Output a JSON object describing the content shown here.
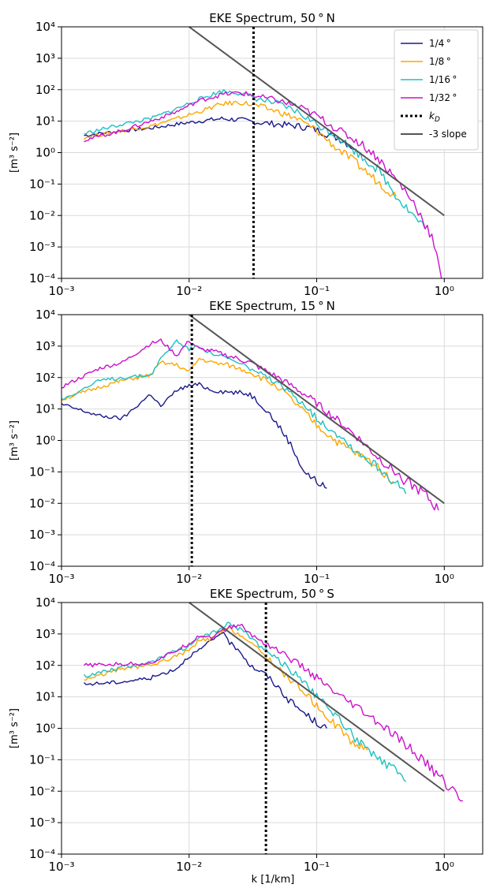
{
  "figure": {
    "xlabel": "k [1/km]"
  },
  "chart_data": [
    {
      "type": "line",
      "title": "EKE Spectrum, 50$^\\circ$N",
      "title_text": "EKE Spectrum, 50 ° N",
      "xlabel": "",
      "ylabel": "[m³ s⁻²]",
      "xscale": "log",
      "yscale": "log",
      "xlim": [
        0.001,
        2
      ],
      "ylim": [
        0.0001,
        10000
      ],
      "x_ticks": [
        "10⁻³",
        "10⁻²",
        "10⁻¹",
        "10⁰"
      ],
      "y_ticks": [
        "10⁻⁴",
        "10⁻³",
        "10⁻²",
        "10⁻¹",
        "10⁰",
        "10¹",
        "10²",
        "10³",
        "10⁴"
      ],
      "grid": true,
      "legend": {
        "placement": "top-right",
        "entries": [
          "1/4 °",
          "1/8 °",
          "1/16 °",
          "1/32 °",
          "k_D",
          "-3 slope"
        ]
      },
      "series": [
        {
          "name": "1/4°",
          "color": "#1a1a8c",
          "x": [
            0.0015,
            0.003,
            0.005,
            0.008,
            0.012,
            0.018,
            0.025,
            0.035,
            0.05,
            0.07,
            0.09,
            0.12,
            0.16,
            0.2
          ],
          "y": [
            3.5,
            5,
            6,
            8,
            10,
            12,
            11,
            9,
            8,
            7,
            6,
            4,
            2.5,
            1.3
          ]
        },
        {
          "name": "1/8°",
          "color": "#ffa500",
          "x": [
            0.0015,
            0.003,
            0.005,
            0.008,
            0.012,
            0.018,
            0.025,
            0.035,
            0.05,
            0.07,
            0.1,
            0.14,
            0.2,
            0.3,
            0.42
          ],
          "y": [
            3,
            5,
            7,
            12,
            20,
            35,
            40,
            30,
            20,
            12,
            5,
            1.5,
            0.5,
            0.12,
            0.04
          ]
        },
        {
          "name": "1/16°",
          "color": "#20c0c0",
          "x": [
            0.0015,
            0.003,
            0.005,
            0.008,
            0.012,
            0.018,
            0.025,
            0.035,
            0.05,
            0.07,
            0.1,
            0.15,
            0.22,
            0.3,
            0.45,
            0.7
          ],
          "y": [
            4,
            8,
            12,
            25,
            50,
            90,
            80,
            50,
            35,
            20,
            8,
            3,
            0.8,
            0.3,
            0.03,
            0.004
          ]
        },
        {
          "name": "1/32°",
          "color": "#cc11cc",
          "x": [
            0.0015,
            0.003,
            0.005,
            0.008,
            0.012,
            0.018,
            0.025,
            0.035,
            0.05,
            0.07,
            0.1,
            0.15,
            0.22,
            0.3,
            0.45,
            0.6,
            0.8,
            0.95
          ],
          "y": [
            2.5,
            5,
            10,
            20,
            45,
            70,
            80,
            60,
            45,
            30,
            15,
            5,
            2,
            0.7,
            0.1,
            0.02,
            0.002,
            0.0001
          ]
        }
      ],
      "k_D": 0.032,
      "slope_line": {
        "x": [
          0.01,
          1
        ],
        "y": [
          10000,
          0.01
        ]
      }
    },
    {
      "type": "line",
      "title": "EKE Spectrum, 15$^\\circ$N",
      "title_text": "EKE Spectrum, 15 ° N",
      "xlabel": "",
      "ylabel": "[m³ s⁻²]",
      "xscale": "log",
      "yscale": "log",
      "xlim": [
        0.001,
        2
      ],
      "ylim": [
        0.0001,
        10000
      ],
      "x_ticks": [
        "10⁻³",
        "10⁻²",
        "10⁻¹",
        "10⁰"
      ],
      "y_ticks": [
        "10⁻⁴",
        "10⁻³",
        "10⁻²",
        "10⁻¹",
        "10⁰",
        "10¹",
        "10²",
        "10³",
        "10⁴"
      ],
      "grid": true,
      "series": [
        {
          "name": "1/4°",
          "color": "#1a1a8c",
          "x": [
            0.001,
            0.002,
            0.003,
            0.005,
            0.006,
            0.008,
            0.01,
            0.012,
            0.015,
            0.02,
            0.03,
            0.04,
            0.05,
            0.06,
            0.07,
            0.08,
            0.1,
            0.12
          ],
          "y": [
            14,
            6,
            5,
            30,
            12,
            40,
            55,
            60,
            40,
            35,
            30,
            10,
            3,
            1,
            0.3,
            0.1,
            0.05,
            0.03
          ]
        },
        {
          "name": "1/8°",
          "color": "#ffa500",
          "x": [
            0.001,
            0.002,
            0.003,
            0.005,
            0.006,
            0.008,
            0.01,
            0.012,
            0.015,
            0.02,
            0.03,
            0.05,
            0.08,
            0.1,
            0.15,
            0.2,
            0.3,
            0.4
          ],
          "y": [
            20,
            50,
            80,
            120,
            300,
            250,
            150,
            400,
            300,
            250,
            150,
            50,
            8,
            3,
            0.8,
            0.4,
            0.15,
            0.05
          ]
        },
        {
          "name": "1/16°",
          "color": "#20c0c0",
          "x": [
            0.001,
            0.002,
            0.003,
            0.005,
            0.006,
            0.008,
            0.01,
            0.012,
            0.015,
            0.02,
            0.03,
            0.05,
            0.08,
            0.1,
            0.15,
            0.2,
            0.3,
            0.4,
            0.5
          ],
          "y": [
            20,
            80,
            100,
            120,
            400,
            1500,
            800,
            1000,
            600,
            400,
            200,
            60,
            15,
            5,
            1.5,
            0.5,
            0.15,
            0.05,
            0.02
          ]
        },
        {
          "name": "1/32°",
          "color": "#cc11cc",
          "x": [
            0.001,
            0.002,
            0.003,
            0.005,
            0.006,
            0.008,
            0.01,
            0.012,
            0.015,
            0.02,
            0.03,
            0.05,
            0.08,
            0.1,
            0.15,
            0.2,
            0.3,
            0.5,
            0.7,
            0.9
          ],
          "y": [
            50,
            200,
            300,
            1200,
            1500,
            500,
            1500,
            800,
            700,
            500,
            300,
            100,
            30,
            15,
            4,
            1.5,
            0.3,
            0.05,
            0.02,
            0.006
          ]
        }
      ],
      "k_D": 0.0105,
      "slope_line": {
        "x": [
          0.01,
          1
        ],
        "y": [
          10000,
          0.01
        ]
      }
    },
    {
      "type": "line",
      "title": "EKE Spectrum, 50$^\\circ$S",
      "title_text": "EKE Spectrum, 50 ° S",
      "xlabel": "k [1/km]",
      "ylabel": "[m³ s⁻²]",
      "xscale": "log",
      "yscale": "log",
      "xlim": [
        0.001,
        2
      ],
      "ylim": [
        0.0001,
        10000
      ],
      "x_ticks": [
        "10⁻³",
        "10⁻²",
        "10⁻¹",
        "10⁰"
      ],
      "y_ticks": [
        "10⁻⁴",
        "10⁻³",
        "10⁻²",
        "10⁻¹",
        "10⁰",
        "10¹",
        "10²",
        "10³",
        "10⁴"
      ],
      "grid": true,
      "series": [
        {
          "name": "1/4°",
          "color": "#1a1a8c",
          "x": [
            0.0015,
            0.003,
            0.005,
            0.008,
            0.01,
            0.012,
            0.015,
            0.018,
            0.02,
            0.025,
            0.03,
            0.04,
            0.05,
            0.06,
            0.08,
            0.1,
            0.12
          ],
          "y": [
            25,
            30,
            40,
            80,
            200,
            300,
            600,
            1200,
            600,
            300,
            100,
            50,
            20,
            8,
            3,
            1.5,
            1
          ]
        },
        {
          "name": "1/8°",
          "color": "#ffa500",
          "x": [
            0.0015,
            0.003,
            0.005,
            0.008,
            0.01,
            0.012,
            0.015,
            0.02,
            0.025,
            0.03,
            0.04,
            0.05,
            0.06,
            0.08,
            0.1,
            0.15,
            0.2,
            0.25
          ],
          "y": [
            35,
            80,
            100,
            200,
            300,
            600,
            700,
            1500,
            1000,
            500,
            200,
            80,
            40,
            15,
            5,
            1,
            0.3,
            0.2
          ]
        },
        {
          "name": "1/16°",
          "color": "#20c0c0",
          "x": [
            0.0015,
            0.003,
            0.005,
            0.008,
            0.01,
            0.012,
            0.015,
            0.02,
            0.025,
            0.03,
            0.04,
            0.05,
            0.08,
            0.1,
            0.15,
            0.2,
            0.3,
            0.4,
            0.5
          ],
          "y": [
            45,
            90,
            120,
            300,
            400,
            800,
            1000,
            2000,
            1500,
            800,
            300,
            150,
            30,
            10,
            2,
            0.5,
            0.1,
            0.05,
            0.02
          ]
        },
        {
          "name": "1/32°",
          "color": "#cc11cc",
          "x": [
            0.0015,
            0.003,
            0.005,
            0.008,
            0.01,
            0.012,
            0.015,
            0.02,
            0.025,
            0.03,
            0.04,
            0.05,
            0.08,
            0.1,
            0.15,
            0.2,
            0.3,
            0.5,
            0.8,
            1.0,
            1.4
          ],
          "y": [
            100,
            110,
            120,
            300,
            500,
            900,
            800,
            1500,
            2000,
            1000,
            500,
            300,
            80,
            40,
            10,
            5,
            1.5,
            0.3,
            0.05,
            0.02,
            0.005
          ]
        }
      ],
      "k_D": 0.04,
      "slope_line": {
        "x": [
          0.01,
          1
        ],
        "y": [
          10000,
          0.01
        ]
      }
    }
  ]
}
